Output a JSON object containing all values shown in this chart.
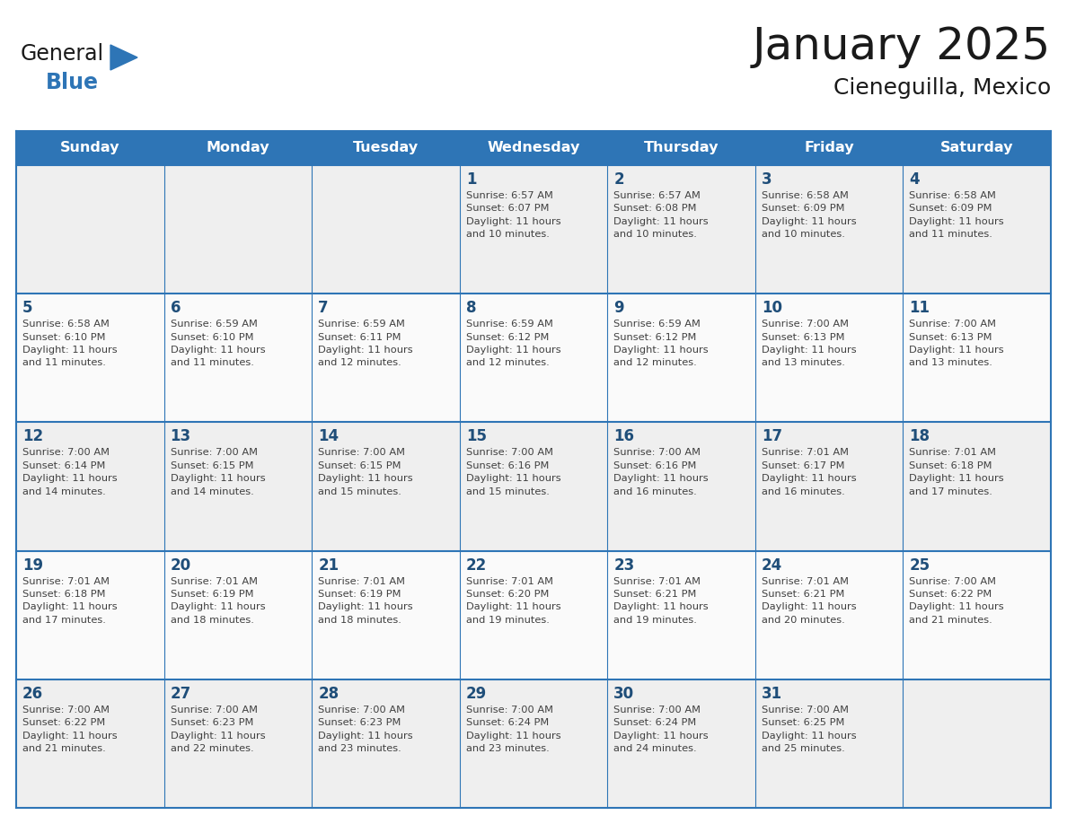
{
  "title": "January 2025",
  "subtitle": "Cieneguilla, Mexico",
  "days_of_week": [
    "Sunday",
    "Monday",
    "Tuesday",
    "Wednesday",
    "Thursday",
    "Friday",
    "Saturday"
  ],
  "header_bg": "#2E75B6",
  "header_text": "#FFFFFF",
  "row_bg_odd": "#EFEFEF",
  "row_bg_even": "#FAFAFA",
  "cell_border": "#2E75B6",
  "day_num_color": "#1F4E79",
  "cell_text_color": "#404040",
  "title_color": "#1a1a1a",
  "subtitle_color": "#1a1a1a",
  "blue_color": "#2E75B6",
  "logo_black": "#1a1a1a",
  "fig_width": 11.88,
  "fig_height": 9.18,
  "dpi": 100,
  "calendar": [
    [
      {
        "day": null,
        "info": null
      },
      {
        "day": null,
        "info": null
      },
      {
        "day": null,
        "info": null
      },
      {
        "day": 1,
        "info": "Sunrise: 6:57 AM\nSunset: 6:07 PM\nDaylight: 11 hours\nand 10 minutes."
      },
      {
        "day": 2,
        "info": "Sunrise: 6:57 AM\nSunset: 6:08 PM\nDaylight: 11 hours\nand 10 minutes."
      },
      {
        "day": 3,
        "info": "Sunrise: 6:58 AM\nSunset: 6:09 PM\nDaylight: 11 hours\nand 10 minutes."
      },
      {
        "day": 4,
        "info": "Sunrise: 6:58 AM\nSunset: 6:09 PM\nDaylight: 11 hours\nand 11 minutes."
      }
    ],
    [
      {
        "day": 5,
        "info": "Sunrise: 6:58 AM\nSunset: 6:10 PM\nDaylight: 11 hours\nand 11 minutes."
      },
      {
        "day": 6,
        "info": "Sunrise: 6:59 AM\nSunset: 6:10 PM\nDaylight: 11 hours\nand 11 minutes."
      },
      {
        "day": 7,
        "info": "Sunrise: 6:59 AM\nSunset: 6:11 PM\nDaylight: 11 hours\nand 12 minutes."
      },
      {
        "day": 8,
        "info": "Sunrise: 6:59 AM\nSunset: 6:12 PM\nDaylight: 11 hours\nand 12 minutes."
      },
      {
        "day": 9,
        "info": "Sunrise: 6:59 AM\nSunset: 6:12 PM\nDaylight: 11 hours\nand 12 minutes."
      },
      {
        "day": 10,
        "info": "Sunrise: 7:00 AM\nSunset: 6:13 PM\nDaylight: 11 hours\nand 13 minutes."
      },
      {
        "day": 11,
        "info": "Sunrise: 7:00 AM\nSunset: 6:13 PM\nDaylight: 11 hours\nand 13 minutes."
      }
    ],
    [
      {
        "day": 12,
        "info": "Sunrise: 7:00 AM\nSunset: 6:14 PM\nDaylight: 11 hours\nand 14 minutes."
      },
      {
        "day": 13,
        "info": "Sunrise: 7:00 AM\nSunset: 6:15 PM\nDaylight: 11 hours\nand 14 minutes."
      },
      {
        "day": 14,
        "info": "Sunrise: 7:00 AM\nSunset: 6:15 PM\nDaylight: 11 hours\nand 15 minutes."
      },
      {
        "day": 15,
        "info": "Sunrise: 7:00 AM\nSunset: 6:16 PM\nDaylight: 11 hours\nand 15 minutes."
      },
      {
        "day": 16,
        "info": "Sunrise: 7:00 AM\nSunset: 6:16 PM\nDaylight: 11 hours\nand 16 minutes."
      },
      {
        "day": 17,
        "info": "Sunrise: 7:01 AM\nSunset: 6:17 PM\nDaylight: 11 hours\nand 16 minutes."
      },
      {
        "day": 18,
        "info": "Sunrise: 7:01 AM\nSunset: 6:18 PM\nDaylight: 11 hours\nand 17 minutes."
      }
    ],
    [
      {
        "day": 19,
        "info": "Sunrise: 7:01 AM\nSunset: 6:18 PM\nDaylight: 11 hours\nand 17 minutes."
      },
      {
        "day": 20,
        "info": "Sunrise: 7:01 AM\nSunset: 6:19 PM\nDaylight: 11 hours\nand 18 minutes."
      },
      {
        "day": 21,
        "info": "Sunrise: 7:01 AM\nSunset: 6:19 PM\nDaylight: 11 hours\nand 18 minutes."
      },
      {
        "day": 22,
        "info": "Sunrise: 7:01 AM\nSunset: 6:20 PM\nDaylight: 11 hours\nand 19 minutes."
      },
      {
        "day": 23,
        "info": "Sunrise: 7:01 AM\nSunset: 6:21 PM\nDaylight: 11 hours\nand 19 minutes."
      },
      {
        "day": 24,
        "info": "Sunrise: 7:01 AM\nSunset: 6:21 PM\nDaylight: 11 hours\nand 20 minutes."
      },
      {
        "day": 25,
        "info": "Sunrise: 7:00 AM\nSunset: 6:22 PM\nDaylight: 11 hours\nand 21 minutes."
      }
    ],
    [
      {
        "day": 26,
        "info": "Sunrise: 7:00 AM\nSunset: 6:22 PM\nDaylight: 11 hours\nand 21 minutes."
      },
      {
        "day": 27,
        "info": "Sunrise: 7:00 AM\nSunset: 6:23 PM\nDaylight: 11 hours\nand 22 minutes."
      },
      {
        "day": 28,
        "info": "Sunrise: 7:00 AM\nSunset: 6:23 PM\nDaylight: 11 hours\nand 23 minutes."
      },
      {
        "day": 29,
        "info": "Sunrise: 7:00 AM\nSunset: 6:24 PM\nDaylight: 11 hours\nand 23 minutes."
      },
      {
        "day": 30,
        "info": "Sunrise: 7:00 AM\nSunset: 6:24 PM\nDaylight: 11 hours\nand 24 minutes."
      },
      {
        "day": 31,
        "info": "Sunrise: 7:00 AM\nSunset: 6:25 PM\nDaylight: 11 hours\nand 25 minutes."
      },
      {
        "day": null,
        "info": null
      }
    ]
  ]
}
